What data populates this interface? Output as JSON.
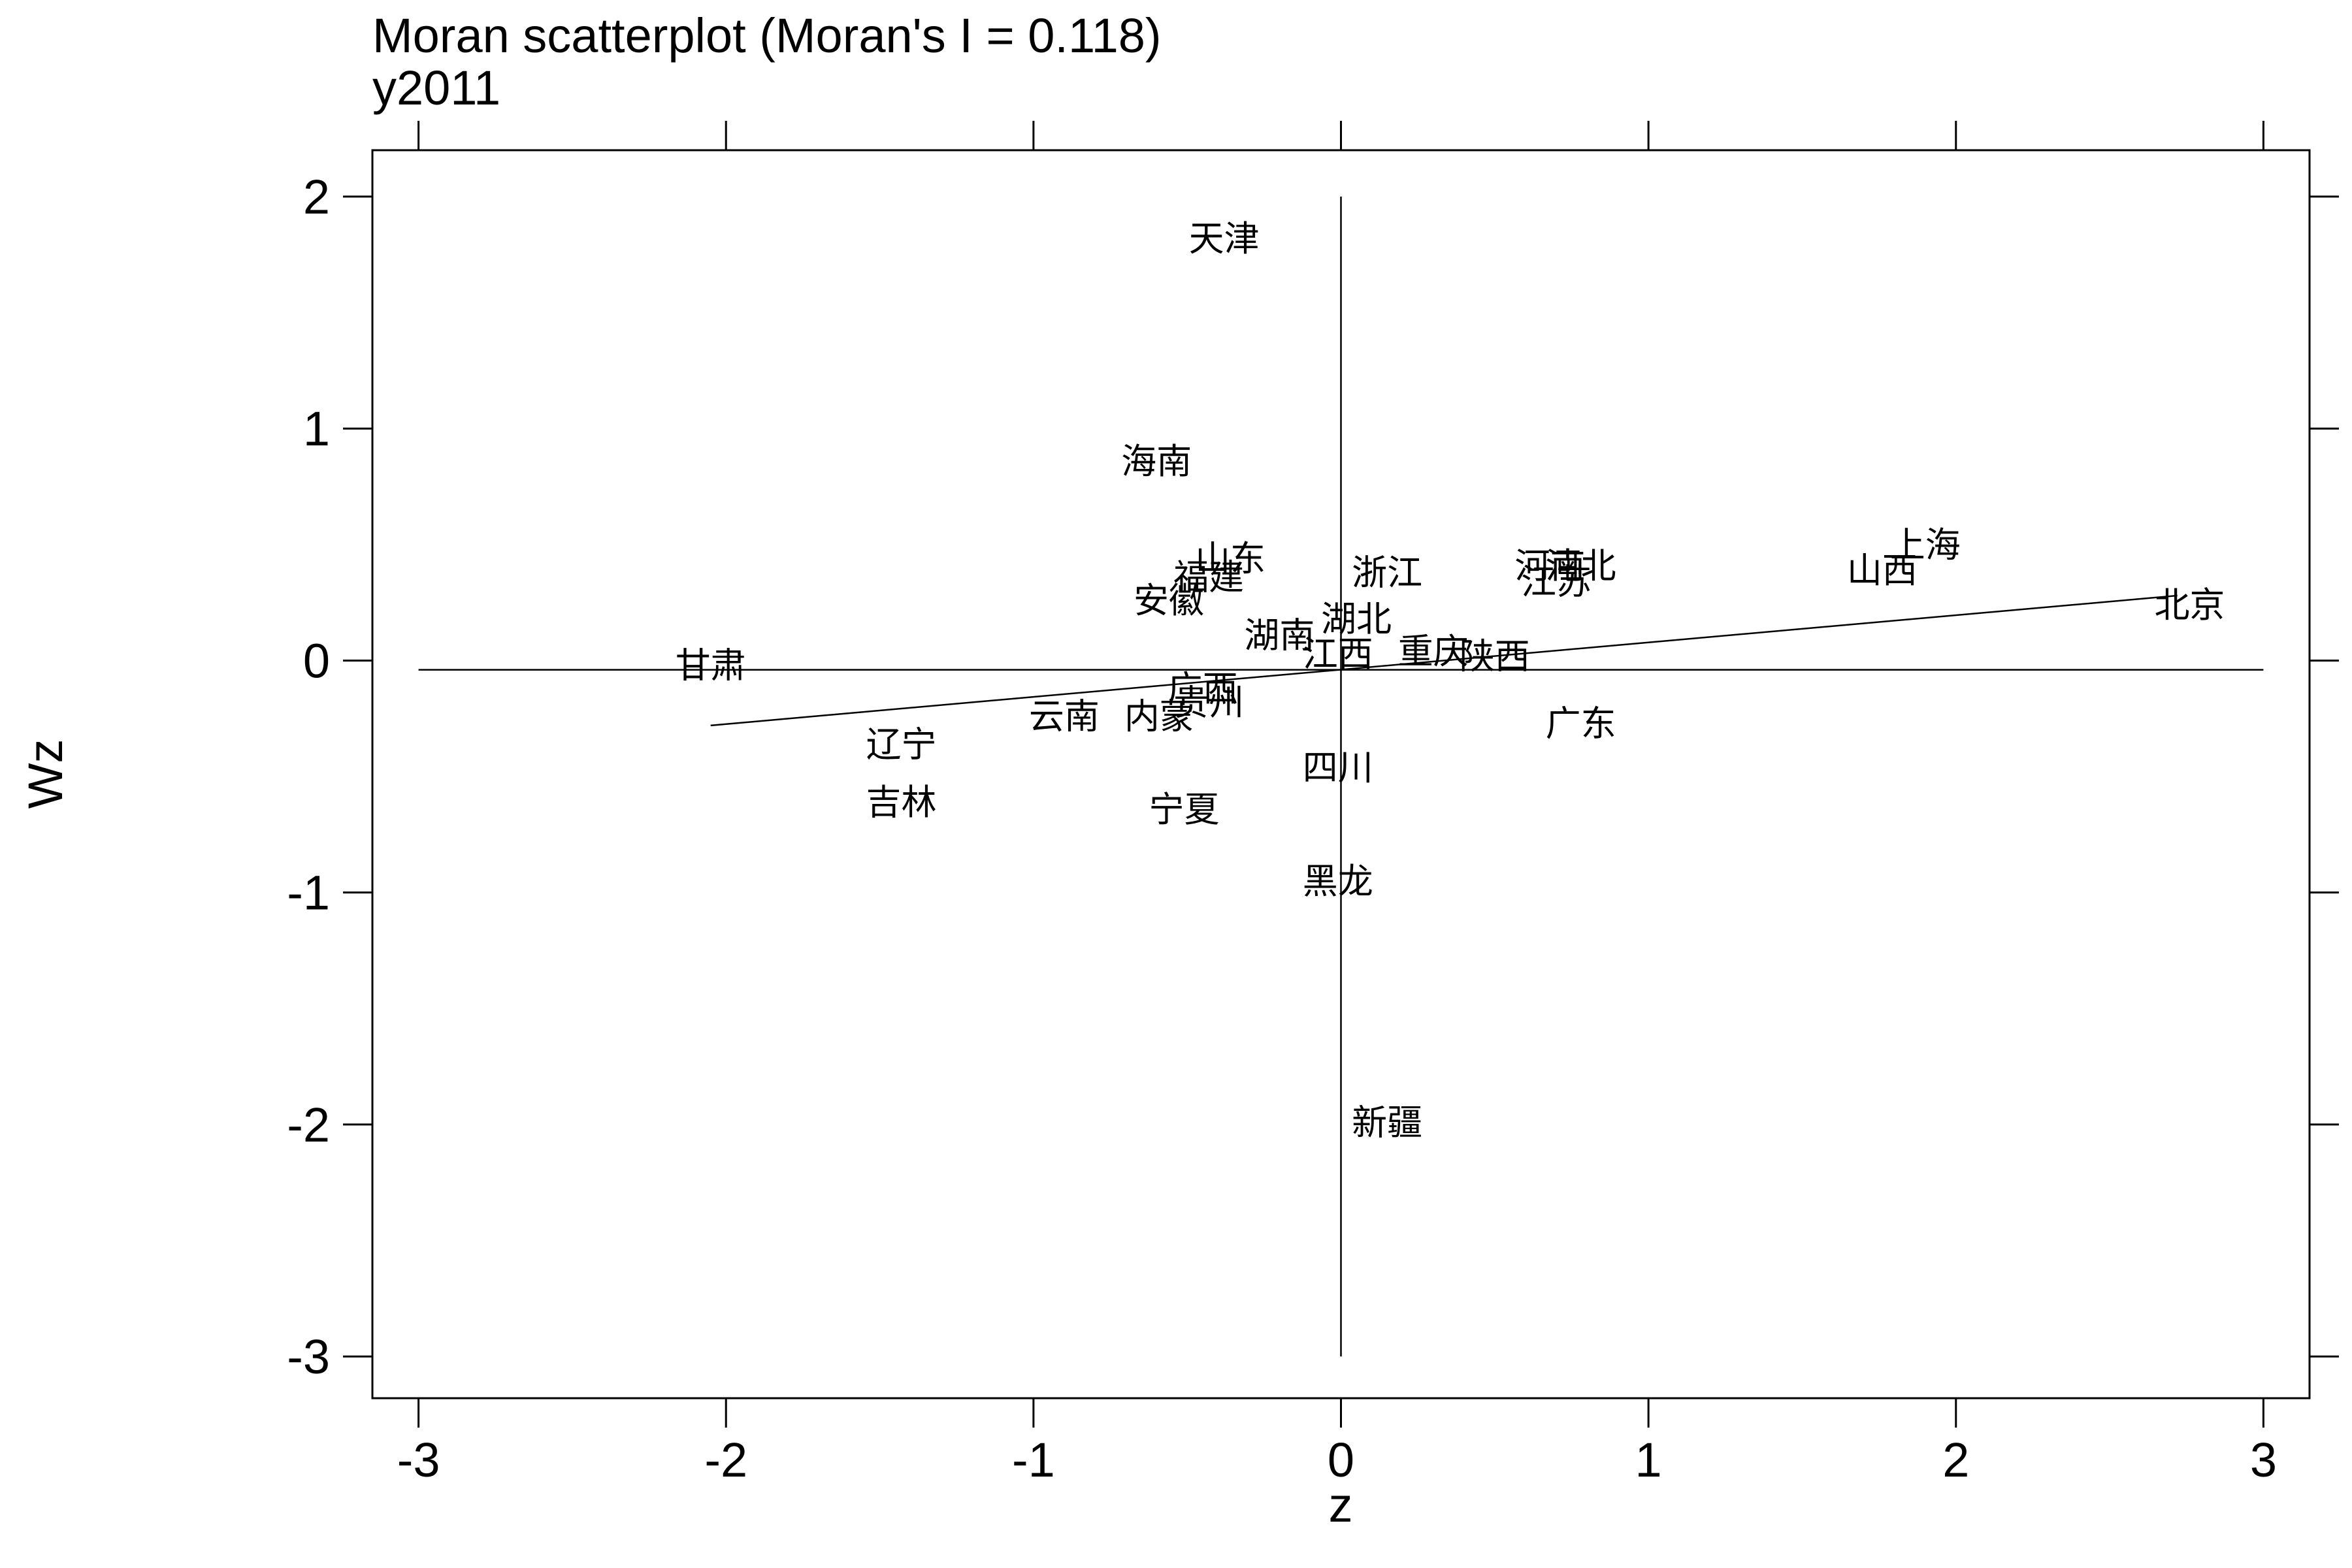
{
  "chart_data": {
    "type": "scatter",
    "title": "Moran scatterplot (Moran's I = 0.118)",
    "subtitle": "y2011",
    "xlabel": "z",
    "ylabel": "Wz",
    "xlim": [
      -3.15,
      3.15
    ],
    "ylim": [
      -3.18,
      2.2
    ],
    "x_ticks": [
      -3,
      -2,
      -1,
      0,
      1,
      2,
      3
    ],
    "y_ticks": [
      -3,
      -2,
      -1,
      0,
      1,
      2
    ],
    "x_tick_labels": [
      "-3",
      "-2",
      "-1",
      "0",
      "1",
      "2",
      "3"
    ],
    "y_tick_labels": [
      "-3",
      "-2",
      "-1",
      "0",
      "1",
      "2"
    ],
    "grid": false,
    "reference_lines": {
      "vertical": {
        "x": 0,
        "y_range": [
          -3,
          2
        ]
      },
      "horizontal": {
        "y": -0.04,
        "x_range": [
          -3,
          3
        ]
      }
    },
    "fit_line": {
      "x": [
        -2.05,
        2.72
      ],
      "y": [
        -0.28,
        0.28
      ]
    },
    "points": [
      {
        "label": "天津",
        "x": -0.38,
        "y": 1.82
      },
      {
        "label": "海南",
        "x": -0.6,
        "y": 0.86
      },
      {
        "label": "山东",
        "x": -0.36,
        "y": 0.44
      },
      {
        "label": "福建",
        "x": -0.43,
        "y": 0.36
      },
      {
        "label": "安徽",
        "x": -0.56,
        "y": 0.26
      },
      {
        "label": "浙江",
        "x": 0.15,
        "y": 0.38
      },
      {
        "label": "河南",
        "x": 0.68,
        "y": 0.41
      },
      {
        "label": "河北",
        "x": 0.78,
        "y": 0.41
      },
      {
        "label": "江苏",
        "x": 0.7,
        "y": 0.34
      },
      {
        "label": "上海",
        "x": 1.9,
        "y": 0.5
      },
      {
        "label": "山西",
        "x": 1.76,
        "y": 0.39
      },
      {
        "label": "北京",
        "x": 2.76,
        "y": 0.24
      },
      {
        "label": "湖北",
        "x": 0.05,
        "y": 0.18
      },
      {
        "label": "湖南",
        "x": -0.2,
        "y": 0.11
      },
      {
        "label": "江西",
        "x": -0.01,
        "y": 0.03
      },
      {
        "label": "重庆",
        "x": 0.3,
        "y": 0.04
      },
      {
        "label": "陕西",
        "x": 0.5,
        "y": 0.02
      },
      {
        "label": "甘肃",
        "x": -2.05,
        "y": -0.02
      },
      {
        "label": "广西",
        "x": -0.45,
        "y": -0.12
      },
      {
        "label": "贵州",
        "x": -0.43,
        "y": -0.18
      },
      {
        "label": "云南",
        "x": -0.9,
        "y": -0.24
      },
      {
        "label": "内蒙",
        "x": -0.59,
        "y": -0.24
      },
      {
        "label": "广东",
        "x": 0.78,
        "y": -0.27
      },
      {
        "label": "辽宁",
        "x": -1.43,
        "y": -0.36
      },
      {
        "label": "四川",
        "x": -0.01,
        "y": -0.46
      },
      {
        "label": "吉林",
        "x": -1.43,
        "y": -0.61
      },
      {
        "label": "宁夏",
        "x": -0.51,
        "y": -0.64
      },
      {
        "label": "黑龙",
        "x": -0.01,
        "y": -0.95
      },
      {
        "label": "新疆",
        "x": 0.15,
        "y": -1.99
      }
    ]
  }
}
